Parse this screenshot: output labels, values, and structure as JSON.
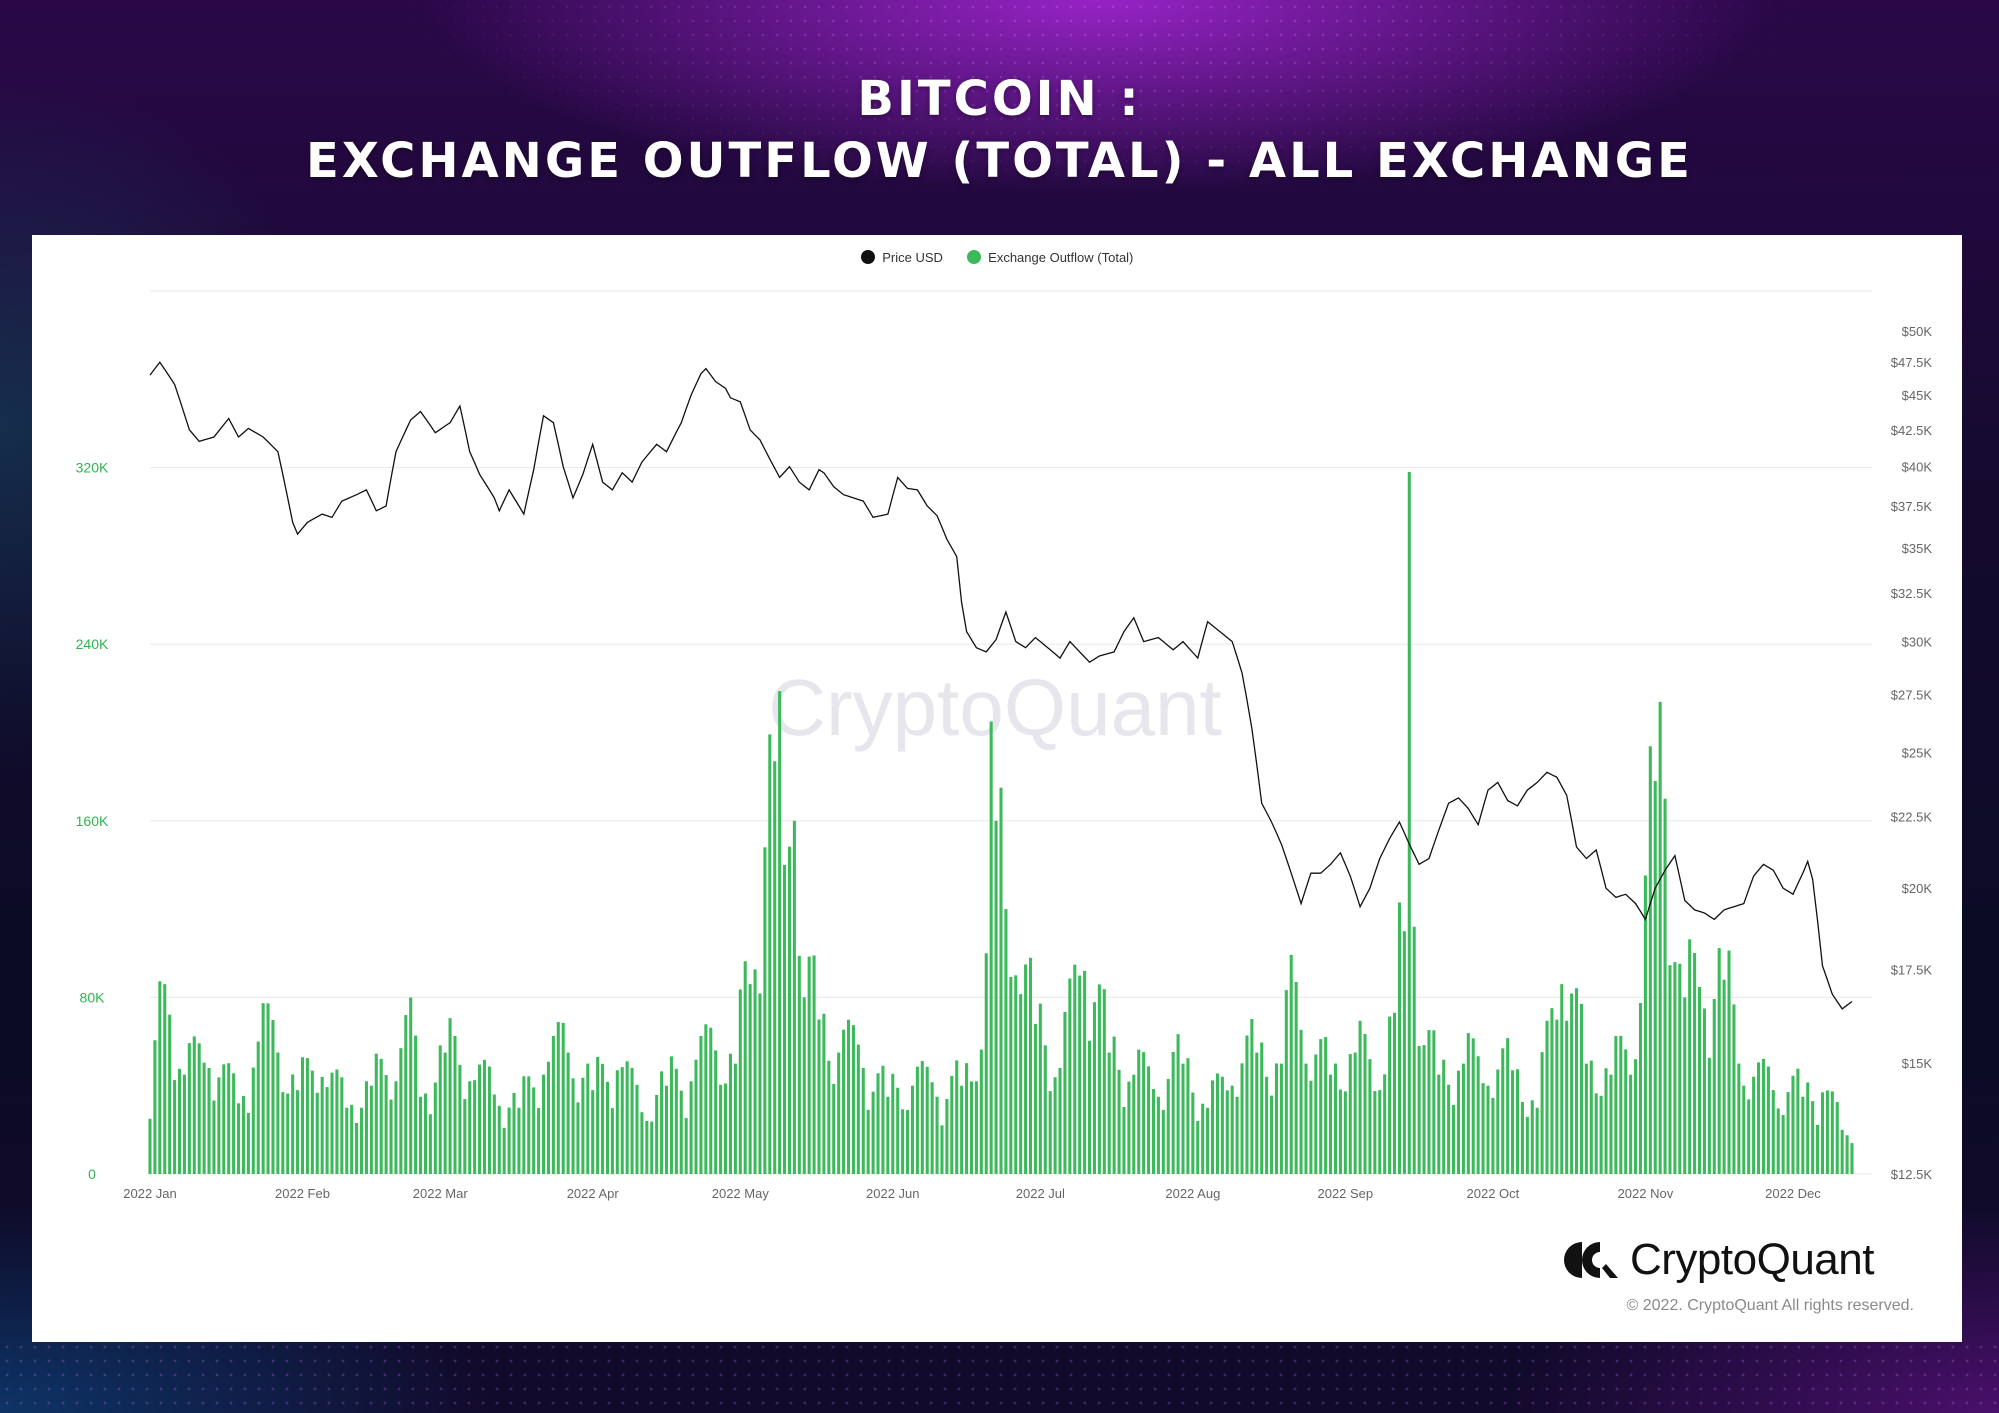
{
  "header": {
    "title_line1": "BITCOIN :",
    "title_line2": "EXCHANGE OUTFLOW (TOTAL) - ALL EXCHANGE"
  },
  "watermark": "CryptoQuant",
  "brand": {
    "name": "CryptoQuant",
    "copyright": "© 2022. CryptoQuant All rights reserved."
  },
  "colors": {
    "price": "#111111",
    "outflow": "#3cb95a",
    "left_axis": "#2fb452",
    "grid": "#e8e8e8"
  },
  "chart_data": {
    "type": "bar",
    "legend": [
      {
        "name": "Price USD",
        "color": "#111111"
      },
      {
        "name": "Exchange Outflow (Total)",
        "color": "#3cb95a"
      }
    ],
    "legend_position": "top-center",
    "grid": true,
    "x_ticks": [
      "2022 Jan",
      "2022 Feb",
      "2022 Mar",
      "2022 Apr",
      "2022 May",
      "2022 Jun",
      "2022 Jul",
      "2022 Aug",
      "2022 Sep",
      "2022 Oct",
      "2022 Nov",
      "2022 Dec"
    ],
    "left_axis": {
      "ticks": [
        "0",
        "80K",
        "160K",
        "240K",
        "320K"
      ],
      "range": [
        0,
        400000
      ]
    },
    "right_axis": {
      "ticks": [
        "$12.5K",
        "$15K",
        "$17.5K",
        "$20K",
        "$22.5K",
        "$25K",
        "$27.5K",
        "$30K",
        "$32.5K",
        "$35K",
        "$37.5K",
        "$40K",
        "$42.5K",
        "$45K",
        "$47.5K",
        "$50K"
      ],
      "range": [
        12500,
        50000
      ],
      "scale": "log"
    },
    "series": [
      {
        "name": "Exchange Outflow (Total)",
        "kind": "bar",
        "axis": "left",
        "anchors": [
          [
            0,
            25000
          ],
          [
            3,
            86000
          ],
          [
            7,
            45000
          ],
          [
            12,
            48000
          ],
          [
            18,
            32000
          ],
          [
            22,
            60000
          ],
          [
            26,
            55000
          ],
          [
            30,
            38000
          ],
          [
            35,
            44000
          ],
          [
            40,
            30000
          ],
          [
            45,
            40000
          ],
          [
            50,
            42000
          ],
          [
            52,
            72000
          ],
          [
            55,
            35000
          ],
          [
            60,
            55000
          ],
          [
            65,
            42000
          ],
          [
            70,
            36000
          ],
          [
            75,
            30000
          ],
          [
            80,
            45000
          ],
          [
            85,
            55000
          ],
          [
            90,
            38000
          ],
          [
            95,
            47000
          ],
          [
            100,
            28000
          ],
          [
            105,
            40000
          ],
          [
            110,
            42000
          ],
          [
            115,
            56000
          ],
          [
            119,
            50000
          ],
          [
            122,
            86000
          ],
          [
            125,
            148000
          ],
          [
            127,
            187000
          ],
          [
            129,
            140000
          ],
          [
            131,
            160000
          ],
          [
            133,
            80000
          ],
          [
            136,
            70000
          ],
          [
            140,
            55000
          ],
          [
            145,
            48000
          ],
          [
            150,
            35000
          ],
          [
            155,
            40000
          ],
          [
            160,
            35000
          ],
          [
            165,
            40000
          ],
          [
            168,
            42000
          ],
          [
            170,
            100000
          ],
          [
            171,
            205000
          ],
          [
            172,
            160000
          ],
          [
            173,
            175000
          ],
          [
            174,
            120000
          ],
          [
            176,
            90000
          ],
          [
            180,
            68000
          ],
          [
            185,
            48000
          ],
          [
            190,
            92000
          ],
          [
            195,
            55000
          ],
          [
            200,
            45000
          ],
          [
            205,
            35000
          ],
          [
            210,
            50000
          ],
          [
            215,
            30000
          ],
          [
            220,
            40000
          ],
          [
            225,
            55000
          ],
          [
            230,
            50000
          ],
          [
            233,
            87000
          ],
          [
            235,
            50000
          ],
          [
            240,
            45000
          ],
          [
            245,
            55000
          ],
          [
            250,
            38000
          ],
          [
            253,
            73000
          ],
          [
            255,
            110000
          ],
          [
            256,
            318000
          ],
          [
            257,
            112000
          ],
          [
            258,
            58000
          ],
          [
            262,
            45000
          ],
          [
            267,
            50000
          ],
          [
            272,
            40000
          ],
          [
            277,
            47000
          ],
          [
            282,
            30000
          ],
          [
            287,
            86000
          ],
          [
            292,
            50000
          ],
          [
            297,
            45000
          ],
          [
            302,
            52000
          ],
          [
            306,
            178000
          ],
          [
            308,
            170000
          ],
          [
            310,
            96000
          ],
          [
            312,
            80000
          ],
          [
            316,
            75000
          ],
          [
            320,
            88000
          ],
          [
            324,
            40000
          ],
          [
            330,
            38000
          ],
          [
            336,
            35000
          ],
          [
            340,
            37000
          ],
          [
            344,
            20000
          ],
          [
            346,
            14000
          ]
        ],
        "n_days": 347
      },
      {
        "name": "Price USD",
        "kind": "line",
        "axis": "right",
        "anchors": [
          [
            0,
            46500
          ],
          [
            2,
            47500
          ],
          [
            5,
            45800
          ],
          [
            8,
            42500
          ],
          [
            10,
            41700
          ],
          [
            13,
            42000
          ],
          [
            16,
            43300
          ],
          [
            18,
            42000
          ],
          [
            20,
            42600
          ],
          [
            23,
            42000
          ],
          [
            26,
            41000
          ],
          [
            28,
            38000
          ],
          [
            29,
            36500
          ],
          [
            30,
            35800
          ],
          [
            32,
            36500
          ],
          [
            35,
            37000
          ],
          [
            37,
            36800
          ],
          [
            39,
            37800
          ],
          [
            42,
            38200
          ],
          [
            44,
            38500
          ],
          [
            46,
            37200
          ],
          [
            48,
            37500
          ],
          [
            50,
            41000
          ],
          [
            53,
            43200
          ],
          [
            55,
            43800
          ],
          [
            58,
            42300
          ],
          [
            61,
            43000
          ],
          [
            63,
            44200
          ],
          [
            65,
            41000
          ],
          [
            67,
            39500
          ],
          [
            70,
            38000
          ],
          [
            71,
            37200
          ],
          [
            73,
            38500
          ],
          [
            76,
            37000
          ],
          [
            78,
            39800
          ],
          [
            80,
            43500
          ],
          [
            82,
            43000
          ],
          [
            84,
            40000
          ],
          [
            86,
            38000
          ],
          [
            88,
            39500
          ],
          [
            90,
            41500
          ],
          [
            92,
            39000
          ],
          [
            94,
            38500
          ],
          [
            96,
            39600
          ],
          [
            98,
            39000
          ],
          [
            100,
            40300
          ],
          [
            103,
            41500
          ],
          [
            105,
            41000
          ],
          [
            108,
            43000
          ],
          [
            110,
            45000
          ],
          [
            112,
            46600
          ],
          [
            113,
            47000
          ],
          [
            115,
            46000
          ],
          [
            117,
            45500
          ],
          [
            118,
            44800
          ],
          [
            120,
            44500
          ],
          [
            122,
            42500
          ],
          [
            124,
            41800
          ],
          [
            126,
            40500
          ],
          [
            128,
            39300
          ],
          [
            130,
            40000
          ],
          [
            132,
            39000
          ],
          [
            134,
            38500
          ],
          [
            136,
            39800
          ],
          [
            137,
            39600
          ],
          [
            139,
            38700
          ],
          [
            141,
            38200
          ],
          [
            143,
            38000
          ],
          [
            145,
            37800
          ],
          [
            147,
            36800
          ],
          [
            150,
            37000
          ],
          [
            152,
            39300
          ],
          [
            154,
            38600
          ],
          [
            156,
            38500
          ],
          [
            158,
            37500
          ],
          [
            160,
            36900
          ],
          [
            162,
            35500
          ],
          [
            164,
            34500
          ],
          [
            165,
            32000
          ],
          [
            166,
            30500
          ],
          [
            168,
            29700
          ],
          [
            170,
            29500
          ],
          [
            172,
            30100
          ],
          [
            174,
            31500
          ],
          [
            176,
            30000
          ],
          [
            178,
            29700
          ],
          [
            180,
            30200
          ],
          [
            182,
            29800
          ],
          [
            185,
            29200
          ],
          [
            187,
            30000
          ],
          [
            189,
            29500
          ],
          [
            191,
            29000
          ],
          [
            193,
            29300
          ],
          [
            196,
            29500
          ],
          [
            198,
            30500
          ],
          [
            200,
            31200
          ],
          [
            202,
            30000
          ],
          [
            205,
            30200
          ],
          [
            208,
            29600
          ],
          [
            210,
            30000
          ],
          [
            213,
            29200
          ],
          [
            215,
            31000
          ],
          [
            217,
            30600
          ],
          [
            220,
            30000
          ],
          [
            222,
            28500
          ],
          [
            224,
            26000
          ],
          [
            226,
            23000
          ],
          [
            228,
            22300
          ],
          [
            230,
            21500
          ],
          [
            232,
            20500
          ],
          [
            234,
            19500
          ],
          [
            236,
            20500
          ],
          [
            238,
            20500
          ],
          [
            240,
            20800
          ],
          [
            242,
            21200
          ],
          [
            244,
            20400
          ],
          [
            246,
            19400
          ],
          [
            248,
            20000
          ],
          [
            250,
            21000
          ],
          [
            252,
            21700
          ],
          [
            254,
            22300
          ],
          [
            256,
            21500
          ],
          [
            258,
            20800
          ],
          [
            260,
            21000
          ],
          [
            262,
            22000
          ],
          [
            264,
            23000
          ],
          [
            266,
            23200
          ],
          [
            268,
            22800
          ],
          [
            270,
            22200
          ],
          [
            272,
            23500
          ],
          [
            274,
            23800
          ],
          [
            276,
            23100
          ],
          [
            278,
            22900
          ],
          [
            280,
            23500
          ],
          [
            282,
            23800
          ],
          [
            284,
            24200
          ],
          [
            286,
            24000
          ],
          [
            288,
            23300
          ],
          [
            290,
            21400
          ],
          [
            292,
            21000
          ],
          [
            294,
            21300
          ],
          [
            296,
            20000
          ],
          [
            298,
            19700
          ],
          [
            300,
            19800
          ],
          [
            302,
            19500
          ],
          [
            304,
            19000
          ],
          [
            306,
            20000
          ],
          [
            308,
            20600
          ],
          [
            310,
            21100
          ],
          [
            312,
            19600
          ],
          [
            314,
            19300
          ],
          [
            316,
            19200
          ],
          [
            318,
            19000
          ],
          [
            320,
            19300
          ],
          [
            322,
            19400
          ],
          [
            324,
            19500
          ],
          [
            326,
            20400
          ],
          [
            328,
            20800
          ],
          [
            330,
            20600
          ],
          [
            332,
            20000
          ],
          [
            334,
            19800
          ],
          [
            336,
            20500
          ],
          [
            337,
            20900
          ],
          [
            338,
            20300
          ],
          [
            340,
            17600
          ],
          [
            342,
            16800
          ],
          [
            344,
            16400
          ],
          [
            346,
            16600
          ]
        ]
      }
    ]
  }
}
